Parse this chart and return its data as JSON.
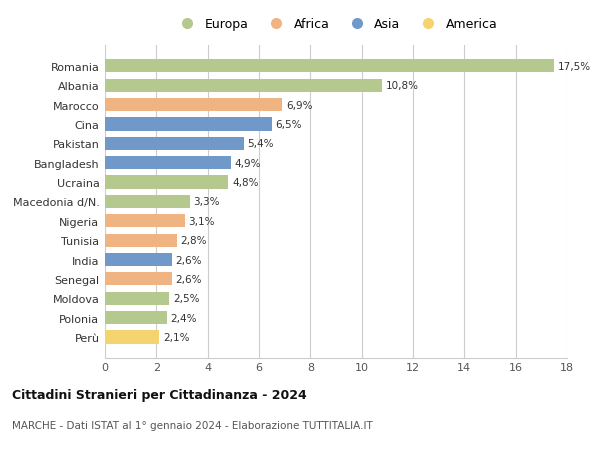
{
  "countries": [
    "Romania",
    "Albania",
    "Marocco",
    "Cina",
    "Pakistan",
    "Bangladesh",
    "Ucraina",
    "Macedonia d/N.",
    "Nigeria",
    "Tunisia",
    "India",
    "Senegal",
    "Moldova",
    "Polonia",
    "Perù"
  ],
  "values": [
    17.5,
    10.8,
    6.9,
    6.5,
    5.4,
    4.9,
    4.8,
    3.3,
    3.1,
    2.8,
    2.6,
    2.6,
    2.5,
    2.4,
    2.1
  ],
  "labels": [
    "17,5%",
    "10,8%",
    "6,9%",
    "6,5%",
    "5,4%",
    "4,9%",
    "4,8%",
    "3,3%",
    "3,1%",
    "2,8%",
    "2,6%",
    "2,6%",
    "2,5%",
    "2,4%",
    "2,1%"
  ],
  "continents": [
    "Europa",
    "Europa",
    "Africa",
    "Asia",
    "Asia",
    "Asia",
    "Europa",
    "Europa",
    "Africa",
    "Africa",
    "Asia",
    "Africa",
    "Europa",
    "Europa",
    "America"
  ],
  "colors": {
    "Europa": "#b5c98e",
    "Africa": "#f0b482",
    "Asia": "#7098c8",
    "America": "#f5d36e"
  },
  "legend_order": [
    "Europa",
    "Africa",
    "Asia",
    "America"
  ],
  "title": "Cittadini Stranieri per Cittadinanza - 2024",
  "subtitle": "MARCHE - Dati ISTAT al 1° gennaio 2024 - Elaborazione TUTTITALIA.IT",
  "xlim": [
    0,
    18
  ],
  "xticks": [
    0,
    2,
    4,
    6,
    8,
    10,
    12,
    14,
    16,
    18
  ],
  "background_color": "#ffffff",
  "grid_color": "#cccccc",
  "bar_height": 0.68
}
